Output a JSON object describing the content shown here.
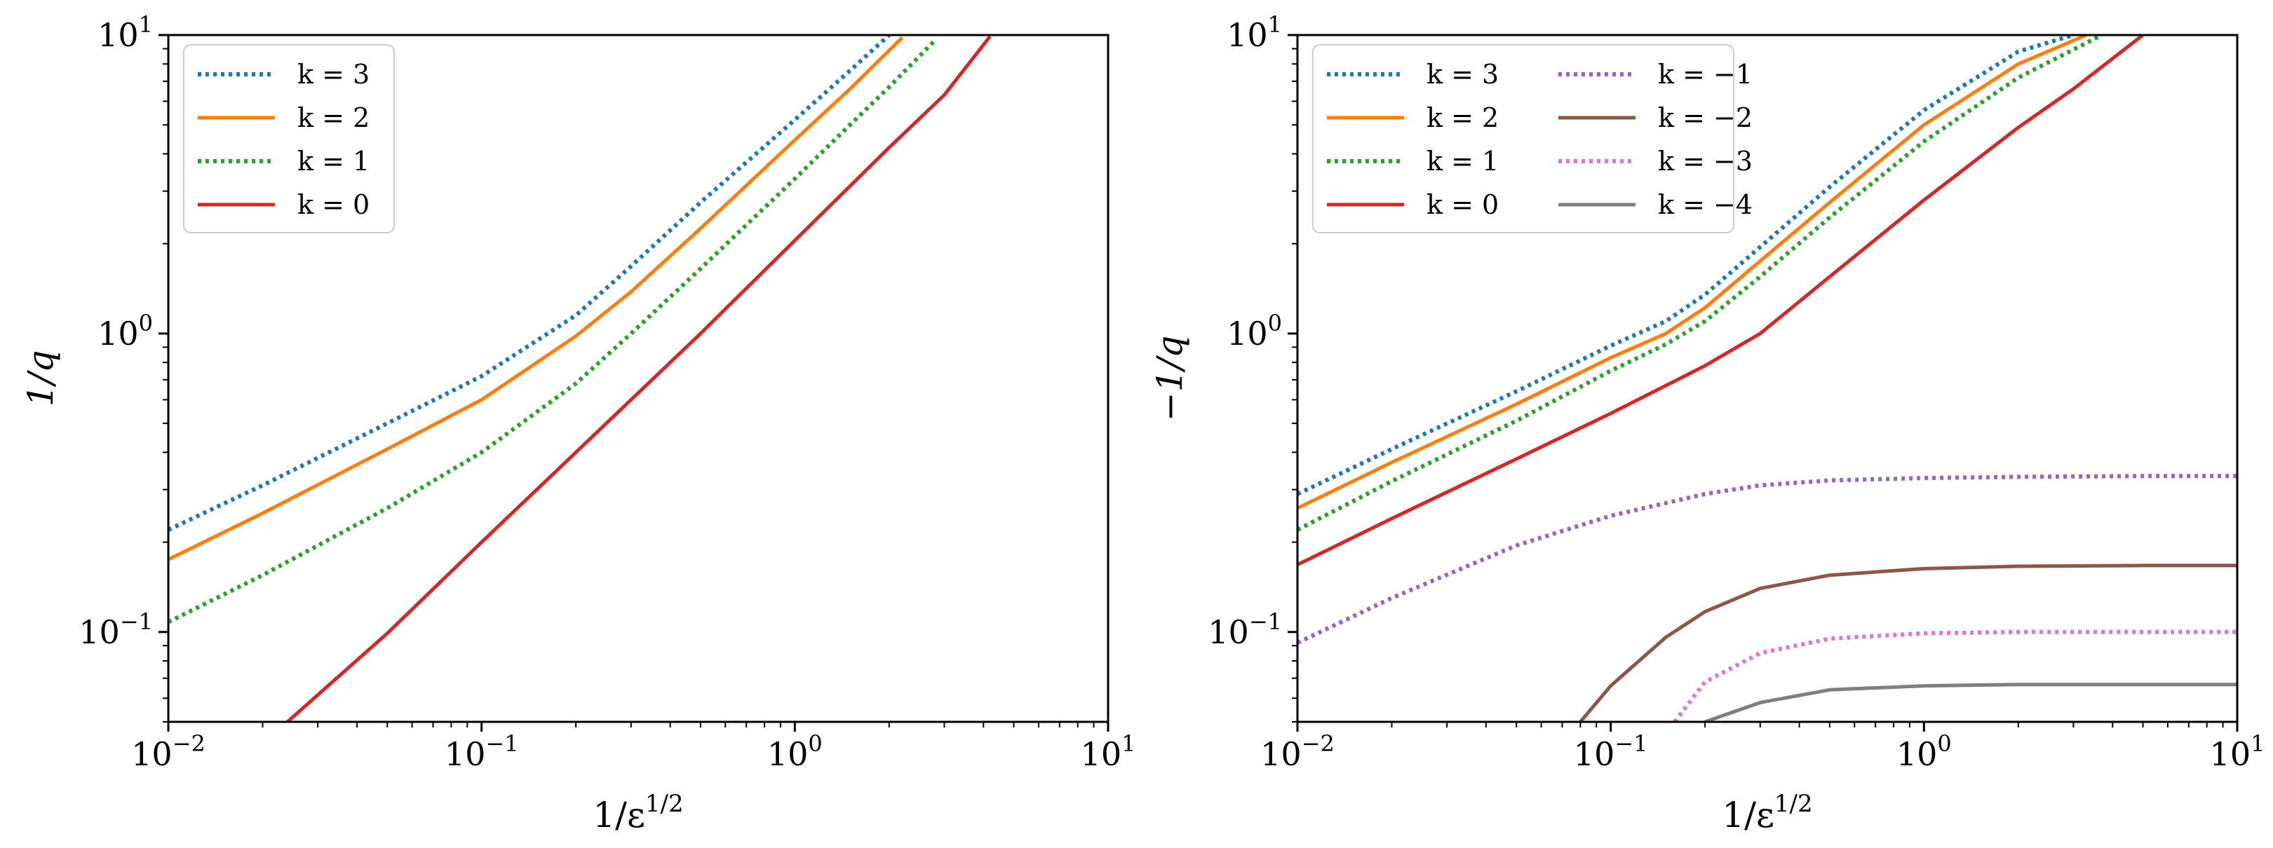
{
  "chart_data": [
    {
      "type": "line",
      "xscale": "log",
      "yscale": "log",
      "xlim": [
        0.01,
        10
      ],
      "ylim": [
        0.05,
        10
      ],
      "xlabel": "1/ε^{1/2}",
      "ylabel": "1/q",
      "xticks": [
        {
          "value": 0.01,
          "base": "10",
          "exp": "−2"
        },
        {
          "value": 0.1,
          "base": "10",
          "exp": "−1"
        },
        {
          "value": 1,
          "base": "10",
          "exp": "0"
        },
        {
          "value": 10,
          "base": "10",
          "exp": "1"
        }
      ],
      "yticks": [
        {
          "value": 0.1,
          "base": "10",
          "exp": "−1"
        },
        {
          "value": 1,
          "base": "10",
          "exp": "0"
        },
        {
          "value": 10,
          "base": "10",
          "exp": "1"
        }
      ],
      "legend": "top-left",
      "legend_columns": 1,
      "series": [
        {
          "name": "k = 3",
          "k": "3",
          "color": "#1f77b4",
          "style": "dotted",
          "x": [
            0.01,
            0.02,
            0.05,
            0.1,
            0.2,
            0.3,
            0.5,
            1.0,
            1.5,
            2.0
          ],
          "y": [
            0.22,
            0.31,
            0.5,
            0.72,
            1.15,
            1.68,
            2.75,
            5.2,
            7.6,
            10.0
          ]
        },
        {
          "name": "k = 2",
          "k": "2",
          "color": "#ff7f0e",
          "style": "solid",
          "x": [
            0.01,
            0.02,
            0.05,
            0.1,
            0.2,
            0.3,
            0.5,
            1.0,
            1.5,
            2.2
          ],
          "y": [
            0.175,
            0.25,
            0.41,
            0.6,
            0.98,
            1.38,
            2.25,
            4.45,
            6.6,
            9.8
          ]
        },
        {
          "name": "k = 1",
          "k": "1",
          "color": "#2ca02c",
          "style": "dotted",
          "x": [
            0.01,
            0.02,
            0.05,
            0.1,
            0.2,
            0.3,
            0.5,
            1.0,
            1.5,
            2.0,
            2.8
          ],
          "y": [
            0.108,
            0.155,
            0.26,
            0.4,
            0.68,
            1.0,
            1.65,
            3.3,
            5.0,
            6.7,
            9.6
          ]
        },
        {
          "name": "k = 0",
          "k": "0",
          "color": "#d62728",
          "style": "solid",
          "x": [
            0.024,
            0.05,
            0.1,
            0.2,
            0.3,
            0.5,
            1.0,
            2.0,
            3.0,
            4.2
          ],
          "y": [
            0.05,
            0.099,
            0.2,
            0.4,
            0.6,
            1.0,
            2.05,
            4.2,
            6.3,
            9.9
          ]
        }
      ]
    },
    {
      "type": "line",
      "xscale": "log",
      "yscale": "log",
      "xlim": [
        0.01,
        10
      ],
      "ylim": [
        0.05,
        10
      ],
      "xlabel": "1/ε^{1/2}",
      "ylabel": "−1/q",
      "xticks": [
        {
          "value": 0.01,
          "base": "10",
          "exp": "−2"
        },
        {
          "value": 0.1,
          "base": "10",
          "exp": "−1"
        },
        {
          "value": 1,
          "base": "10",
          "exp": "0"
        },
        {
          "value": 10,
          "base": "10",
          "exp": "1"
        }
      ],
      "yticks": [
        {
          "value": 0.1,
          "base": "10",
          "exp": "−1"
        },
        {
          "value": 1,
          "base": "10",
          "exp": "0"
        },
        {
          "value": 10,
          "base": "10",
          "exp": "1"
        }
      ],
      "legend": "top-left",
      "legend_columns": 2,
      "series": [
        {
          "name": "k = 3",
          "k": "3",
          "color": "#1f77b4",
          "style": "dotted",
          "x": [
            0.01,
            0.02,
            0.05,
            0.1,
            0.15,
            0.2,
            0.3,
            0.5,
            1.0,
            2.0,
            3.0
          ],
          "y": [
            0.29,
            0.41,
            0.64,
            0.91,
            1.1,
            1.35,
            1.95,
            3.1,
            5.6,
            8.8,
            10.0
          ]
        },
        {
          "name": "k = 2",
          "k": "2",
          "color": "#ff7f0e",
          "style": "solid",
          "x": [
            0.01,
            0.02,
            0.05,
            0.1,
            0.15,
            0.2,
            0.3,
            0.5,
            1.0,
            2.0,
            3.3
          ],
          "y": [
            0.26,
            0.37,
            0.58,
            0.83,
            1.0,
            1.22,
            1.75,
            2.75,
            5.0,
            8.0,
            10.0
          ]
        },
        {
          "name": "k = 1",
          "k": "1",
          "color": "#2ca02c",
          "style": "dotted",
          "x": [
            0.01,
            0.02,
            0.05,
            0.1,
            0.15,
            0.2,
            0.3,
            0.5,
            1.0,
            2.0,
            3.7
          ],
          "y": [
            0.22,
            0.32,
            0.51,
            0.75,
            0.92,
            1.1,
            1.55,
            2.45,
            4.4,
            7.2,
            10.0
          ]
        },
        {
          "name": "k = 0",
          "k": "0",
          "color": "#d62728",
          "style": "solid",
          "x": [
            0.01,
            0.02,
            0.05,
            0.1,
            0.2,
            0.3,
            0.5,
            1.0,
            2.0,
            3.0,
            5.0
          ],
          "y": [
            0.168,
            0.24,
            0.38,
            0.54,
            0.78,
            1.0,
            1.55,
            2.8,
            4.9,
            6.6,
            10.0
          ]
        },
        {
          "name": "k = −1",
          "k": "−1",
          "color": "#9467bd",
          "style": "dotted",
          "x": [
            0.01,
            0.02,
            0.05,
            0.1,
            0.2,
            0.3,
            0.5,
            1.0,
            2.0,
            5.0,
            10.0
          ],
          "y": [
            0.092,
            0.13,
            0.195,
            0.245,
            0.29,
            0.31,
            0.322,
            0.328,
            0.331,
            0.333,
            0.333
          ]
        },
        {
          "name": "k = −2",
          "k": "−2",
          "color": "#8c564b",
          "style": "solid",
          "x": [
            0.08,
            0.1,
            0.15,
            0.2,
            0.3,
            0.5,
            1.0,
            2.0,
            5.0,
            10.0
          ],
          "y": [
            0.05,
            0.066,
            0.096,
            0.117,
            0.14,
            0.155,
            0.163,
            0.166,
            0.167,
            0.167
          ]
        },
        {
          "name": "k = −3",
          "k": "−3",
          "color": "#e377c2",
          "style": "dotted",
          "x": [
            0.16,
            0.2,
            0.3,
            0.5,
            1.0,
            2.0,
            5.0,
            10.0
          ],
          "y": [
            0.05,
            0.068,
            0.085,
            0.095,
            0.099,
            0.1,
            0.1,
            0.1
          ]
        },
        {
          "name": "k = −4",
          "k": "−4",
          "color": "#7f7f7f",
          "style": "solid",
          "x": [
            0.2,
            0.3,
            0.5,
            1.0,
            2.0,
            5.0,
            10.0
          ],
          "y": [
            0.05,
            0.058,
            0.064,
            0.066,
            0.0667,
            0.0667,
            0.0667
          ]
        }
      ]
    }
  ]
}
